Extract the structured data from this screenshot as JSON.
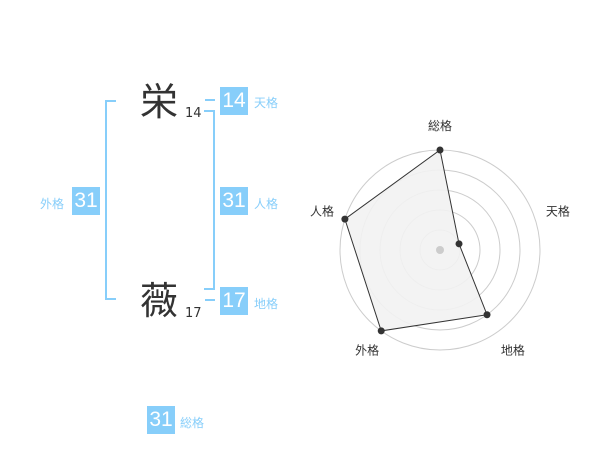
{
  "name": {
    "chars": [
      {
        "char": "栄",
        "strokes": "14"
      },
      {
        "char": "薇",
        "strokes": "17"
      }
    ]
  },
  "kaku": {
    "tenkaku": {
      "label": "天格",
      "value": "14"
    },
    "jinkaku": {
      "label": "人格",
      "value": "31"
    },
    "chikaku": {
      "label": "地格",
      "value": "17"
    },
    "gaikaku": {
      "label": "外格",
      "value": "31"
    },
    "soukaku": {
      "label": "総格",
      "value": "31"
    }
  },
  "colors": {
    "accent": "#87cefa",
    "text": "#333333",
    "radar_fill": "#f2f2f2"
  },
  "chart_data": {
    "type": "radar",
    "axes": [
      "総格",
      "天格",
      "地格",
      "外格",
      "人格"
    ],
    "values": [
      5,
      1,
      4,
      5,
      5
    ],
    "range": [
      0,
      5
    ],
    "rings": 5
  }
}
